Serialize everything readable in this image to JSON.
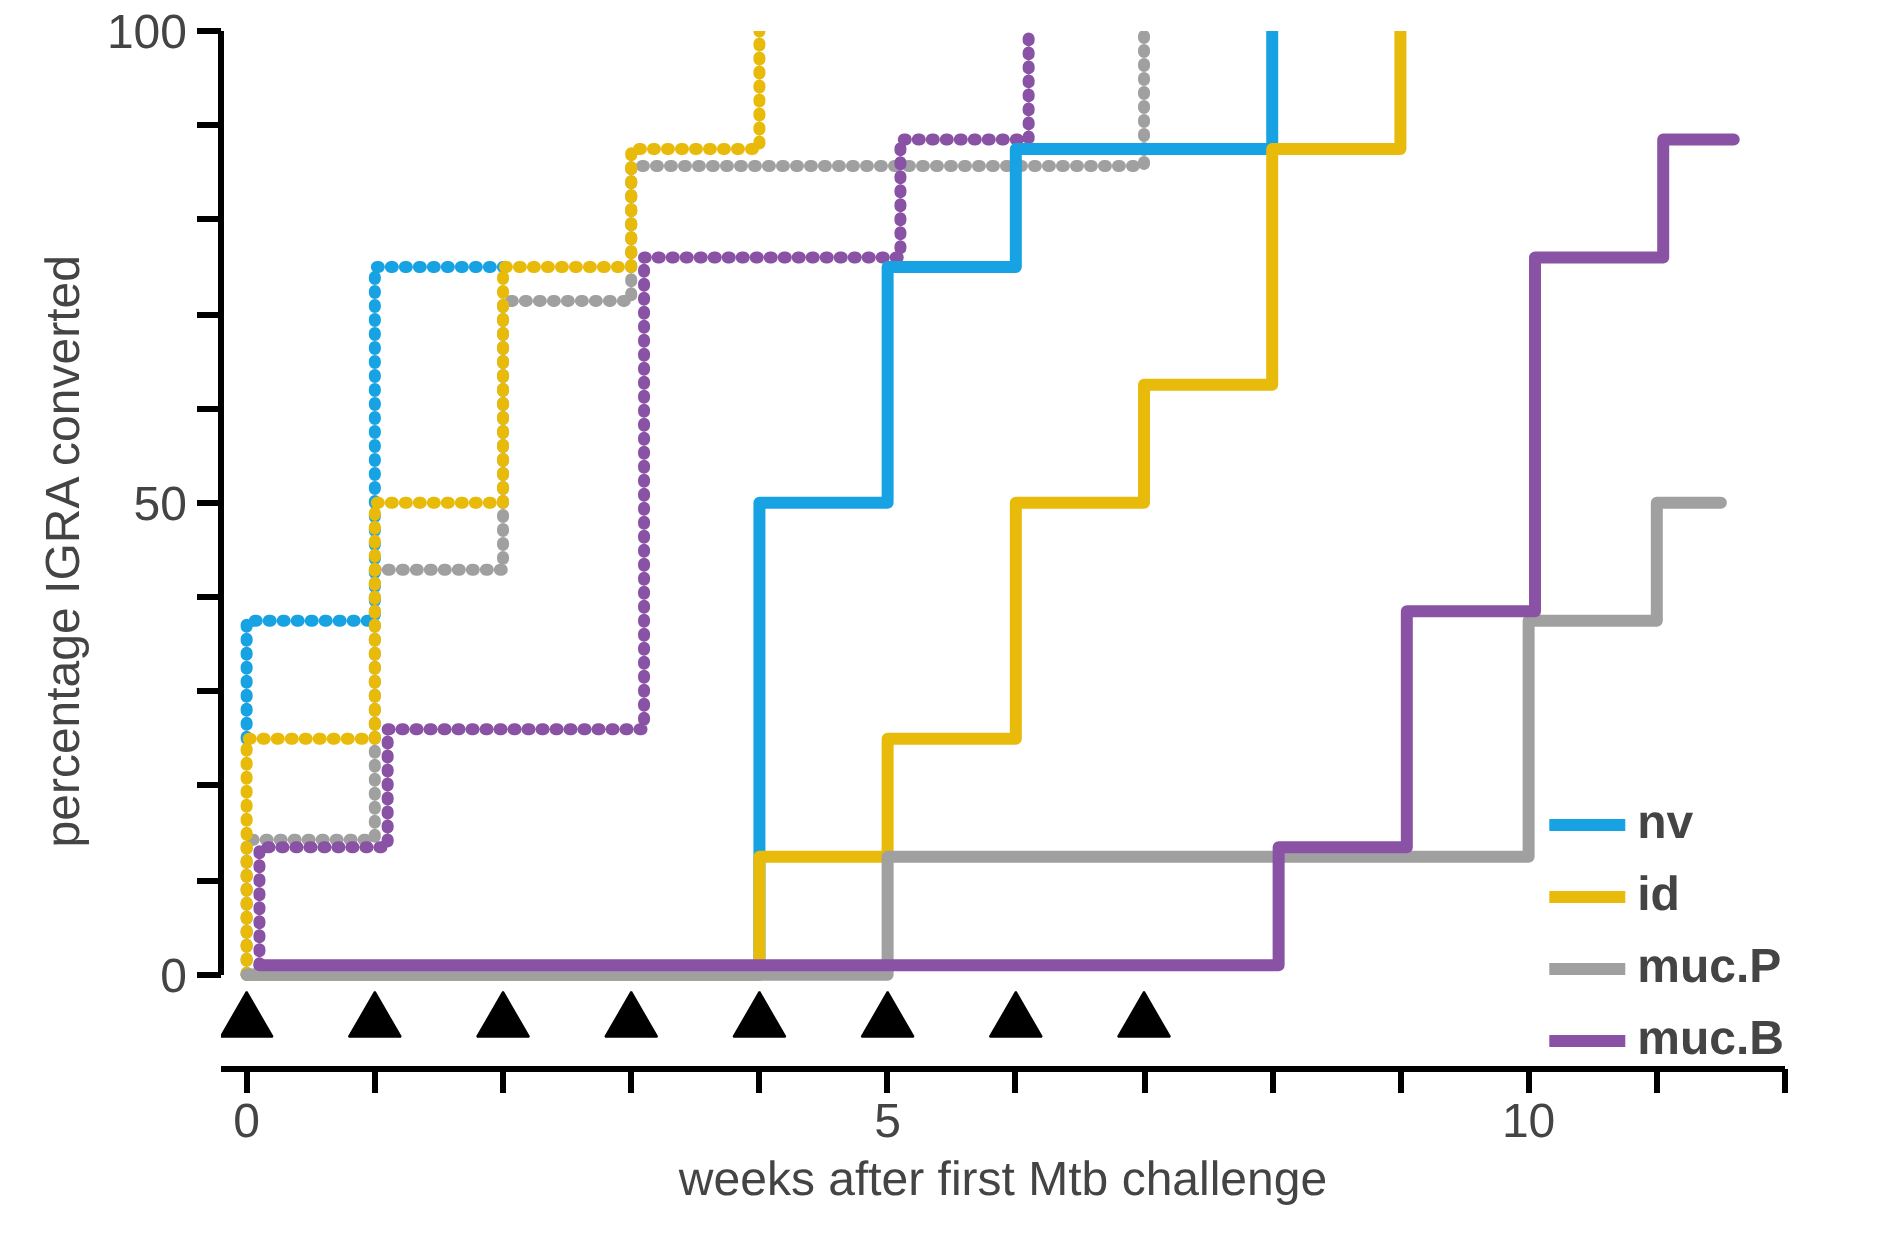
{
  "chart_data": {
    "type": "step",
    "xlabel": "weeks after first Mtb challenge",
    "ylabel": "percentage IGRA converted",
    "xlim": [
      -0.2,
      12
    ],
    "xticks": [
      0,
      {
        "value": 1,
        "label": null
      },
      {
        "value": 2,
        "label": null
      },
      {
        "value": 3,
        "label": null
      },
      {
        "value": 4,
        "label": null
      },
      5,
      {
        "value": 6,
        "label": null
      },
      {
        "value": 7,
        "label": null
      },
      {
        "value": 8,
        "label": null
      },
      {
        "value": 9,
        "label": null
      },
      10,
      {
        "value": 11,
        "label": null
      },
      {
        "value": 12,
        "label": null
      }
    ],
    "ylim": [
      -10,
      100
    ],
    "yticks": [
      0,
      {
        "value": 10,
        "label": null
      },
      {
        "value": 20,
        "label": null
      },
      {
        "value": 30,
        "label": null
      },
      {
        "value": 40,
        "label": null
      },
      50,
      {
        "value": 60,
        "label": null
      },
      {
        "value": 70,
        "label": null
      },
      {
        "value": 80,
        "label": null
      },
      {
        "value": 90,
        "label": null
      },
      100
    ],
    "grid": false,
    "legend": "bottom right",
    "series": [
      {
        "color": "#17a3e3",
        "line_style": "dotted",
        "x": [
          0,
          0,
          1,
          2
        ],
        "values": [
          25,
          37.5,
          75,
          75
        ]
      },
      {
        "color": "#a0a0a0",
        "line_style": "dotted",
        "x": [
          0,
          0,
          1,
          2,
          3,
          7
        ],
        "values": [
          0,
          14.3,
          42.9,
          71.4,
          85.7,
          100
        ]
      },
      {
        "color": "#e8bb0a",
        "line_style": "dotted",
        "x": [
          0,
          0,
          1,
          2,
          3,
          4
        ],
        "values": [
          0,
          25,
          50,
          75,
          87.5,
          100
        ]
      },
      {
        "color": "#8a52a5",
        "line_style": "dotted",
        "x": [
          0.1,
          0.1,
          1.1,
          3.1,
          5.1,
          6.1
        ],
        "values": [
          1,
          13.5,
          26,
          76,
          88.5,
          100
        ]
      },
      {
        "name": "nv",
        "color": "#17a3e3",
        "line_style": "solid",
        "x": [
          0,
          4,
          5,
          6,
          8
        ],
        "values": [
          0,
          50,
          75,
          87.5,
          100
        ]
      },
      {
        "name": "id",
        "color": "#e8bb0a",
        "line_style": "solid",
        "x": [
          0,
          4,
          5,
          6,
          7,
          8,
          9
        ],
        "values": [
          0,
          12.5,
          25,
          50,
          62.5,
          87.5,
          100
        ]
      },
      {
        "name": "muc.P",
        "color": "#a0a0a0",
        "line_style": "solid",
        "x": [
          0,
          5,
          10,
          11,
          11.5
        ],
        "values": [
          0,
          12.5,
          37.5,
          50,
          50
        ]
      },
      {
        "name": "muc.B",
        "color": "#8a52a5",
        "line_style": "solid",
        "x": [
          0.1,
          8.05,
          9.05,
          10.05,
          11.05,
          11.6
        ],
        "values": [
          1,
          13.5,
          38.5,
          76,
          88.5,
          88.5
        ]
      },
      {
        "type": "scatter",
        "marker": "triangle",
        "color": "#000000",
        "x": [
          0,
          1,
          2,
          3,
          4,
          5,
          6,
          7
        ],
        "values": [
          -5,
          -5,
          -5,
          -5,
          -5,
          -5,
          -5,
          -5
        ]
      }
    ]
  }
}
